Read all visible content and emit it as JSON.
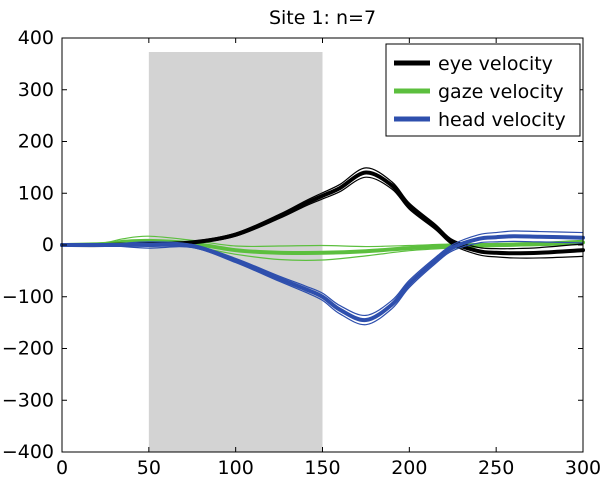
{
  "chart_data": {
    "type": "line",
    "title": "Site 1: n=7",
    "xlabel": "",
    "ylabel": "",
    "xlim": [
      0,
      300
    ],
    "ylim": [
      -400,
      400
    ],
    "x_ticks": [
      0,
      50,
      100,
      150,
      200,
      250,
      300
    ],
    "y_ticks": [
      400,
      300,
      200,
      100,
      0,
      -100,
      -200,
      -300,
      -400
    ],
    "grid": false,
    "legend_position": "top-right",
    "shaded_interval": {
      "x_start": 50,
      "x_end": 150,
      "color": "#d3d3d3"
    },
    "series": [
      {
        "name": "eye velocity",
        "color": "#000000",
        "x": [
          0,
          25,
          50,
          75,
          100,
          125,
          140,
          150,
          160,
          175,
          190,
          200,
          215,
          225,
          240,
          250,
          260,
          275,
          300
        ],
        "values": [
          0,
          0,
          2,
          5,
          20,
          55,
          80,
          95,
          110,
          140,
          115,
          75,
          35,
          5,
          -12,
          -15,
          -16,
          -15,
          -10
        ],
        "bounds_offset": [
          0,
          0,
          1,
          2,
          3,
          4,
          5,
          6,
          7,
          9,
          7,
          6,
          5,
          5,
          7,
          8,
          9,
          10,
          12
        ]
      },
      {
        "name": "gaze velocity",
        "color": "#5cbf3e",
        "x": [
          0,
          25,
          35,
          50,
          75,
          100,
          125,
          150,
          175,
          200,
          225,
          250,
          275,
          300
        ],
        "values": [
          0,
          2,
          6,
          8,
          3,
          -10,
          -15,
          -15,
          -12,
          -6,
          -2,
          0,
          2,
          5
        ],
        "bounds_offset": [
          1,
          3,
          6,
          9,
          6,
          8,
          13,
          14,
          9,
          5,
          4,
          3,
          3,
          4
        ]
      },
      {
        "name": "head velocity",
        "color": "#2e4fad",
        "x": [
          0,
          25,
          50,
          75,
          100,
          125,
          140,
          150,
          160,
          175,
          190,
          200,
          215,
          225,
          240,
          250,
          260,
          275,
          300
        ],
        "values": [
          0,
          0,
          0,
          -2,
          -30,
          -65,
          -85,
          -100,
          -125,
          -145,
          -115,
          -75,
          -30,
          -5,
          12,
          15,
          17,
          16,
          14
        ],
        "bounds_offset": [
          0,
          1,
          6,
          3,
          4,
          5,
          6,
          7,
          8,
          9,
          8,
          7,
          6,
          6,
          8,
          9,
          10,
          10,
          10
        ]
      }
    ]
  }
}
